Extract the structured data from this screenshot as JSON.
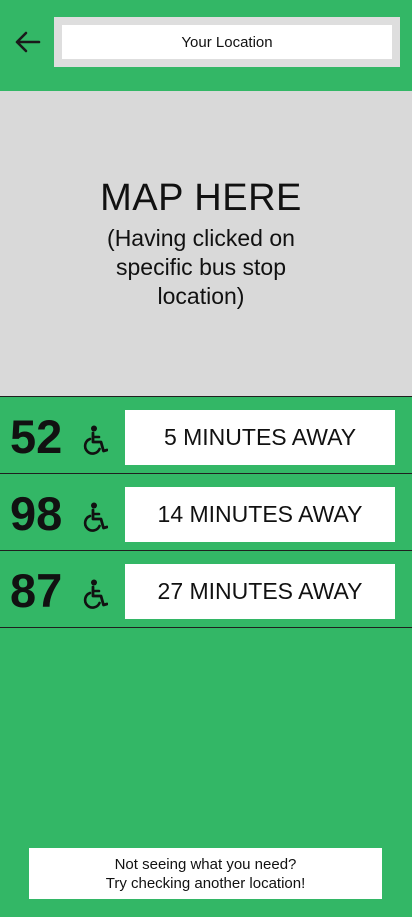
{
  "header": {
    "search_value": "Your Location"
  },
  "map": {
    "title": "MAP HERE",
    "subtitle": "(Having clicked on specific bus stop location)"
  },
  "buses": [
    {
      "route": "52",
      "eta": "5 MINUTES AWAY",
      "icon": "wheelchair-icon"
    },
    {
      "route": "98",
      "eta": "14 MINUTES AWAY",
      "icon": "wheelchair-icon"
    },
    {
      "route": "87",
      "eta": "27 MINUTES AWAY",
      "icon": "wheelchair-icon"
    }
  ],
  "footer": {
    "line1": "Not seeing what you need?",
    "line2": "Try checking another location!"
  },
  "colors": {
    "background": "#33b766",
    "map": "#d9d9d9",
    "box": "#ffffff"
  }
}
